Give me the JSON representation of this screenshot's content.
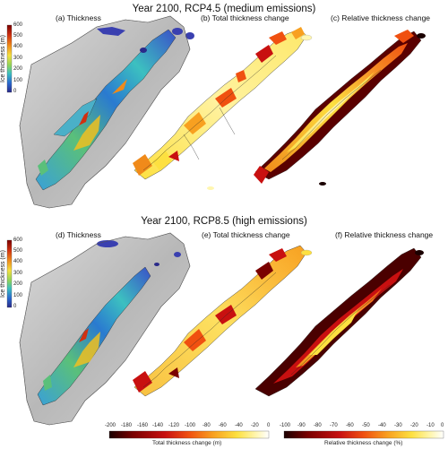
{
  "rows": [
    {
      "title": "Year 2100, RCP4.5 (medium emissions)",
      "panels": [
        "(a) Thickness",
        "(b) Total thickness change",
        "(c) Relative thickness change"
      ]
    },
    {
      "title": "Year 2100, RCP8.5 (high emissions)",
      "panels": [
        "(d) Thickness",
        "(e) Total thickness change",
        "(f) Relative thickness change"
      ]
    }
  ],
  "thickness_colorbar": {
    "title": "Ice thickness (m)",
    "ticks": [
      "600",
      "500",
      "400",
      "300",
      "200",
      "100",
      "0"
    ],
    "colors": [
      "#7a0000",
      "#d03010",
      "#f08a1a",
      "#f5e040",
      "#8fd45a",
      "#3cc0c0",
      "#2a6ad0",
      "#2a2a8a"
    ]
  },
  "total_change_colorbar": {
    "title": "Total thickness change (m)",
    "ticks": [
      "-200",
      "-180",
      "-160",
      "-140",
      "-120",
      "-100",
      "-80",
      "-60",
      "-40",
      "-20",
      "0"
    ],
    "colors": [
      "#1a0000",
      "#7a0000",
      "#c81010",
      "#f05010",
      "#f8a020",
      "#fde040",
      "#fff6b0",
      "#ffffff"
    ]
  },
  "relative_change_colorbar": {
    "title": "Relative thickness change (%)",
    "ticks": [
      "-100",
      "-90",
      "-80",
      "-70",
      "-60",
      "-50",
      "-40",
      "-30",
      "-20",
      "-10",
      "0"
    ],
    "colors": [
      "#1a0000",
      "#7a0000",
      "#c81010",
      "#f05010",
      "#f8a020",
      "#fde040",
      "#fff6b0",
      "#ffffff"
    ]
  }
}
